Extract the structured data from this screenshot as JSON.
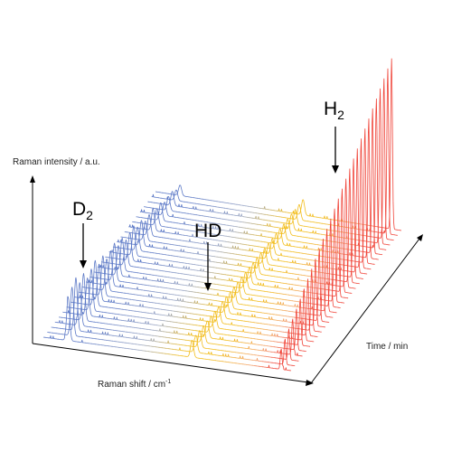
{
  "chart_data": {
    "type": "line",
    "style": "3d-waterfall",
    "xlabel": "Raman shift / cm",
    "xlabel_superscript": "-1",
    "ylabel": "Raman intensity / a.u.",
    "zlabel": "Time / min",
    "grid": false,
    "legend": "none",
    "n_spectra": 30,
    "colors": {
      "D2": "#5b78c6",
      "HD": "#f2bd1d",
      "H2": "#f0453a",
      "mid_low": "#9ba7c4",
      "mid_high": "#f3a36f"
    },
    "annotations": [
      {
        "id": "d2",
        "base": "D",
        "sub": "2"
      },
      {
        "id": "hd",
        "base": "HD",
        "sub": ""
      },
      {
        "id": "h2",
        "base": "H",
        "sub": "2"
      }
    ],
    "peaks": [
      {
        "name": "D2",
        "start": 0.3,
        "end": 0.06
      },
      {
        "name": "HD",
        "start": 0.1,
        "end": 0.09
      },
      {
        "name": "H2",
        "start": 0.12,
        "end": 1.0
      }
    ]
  }
}
